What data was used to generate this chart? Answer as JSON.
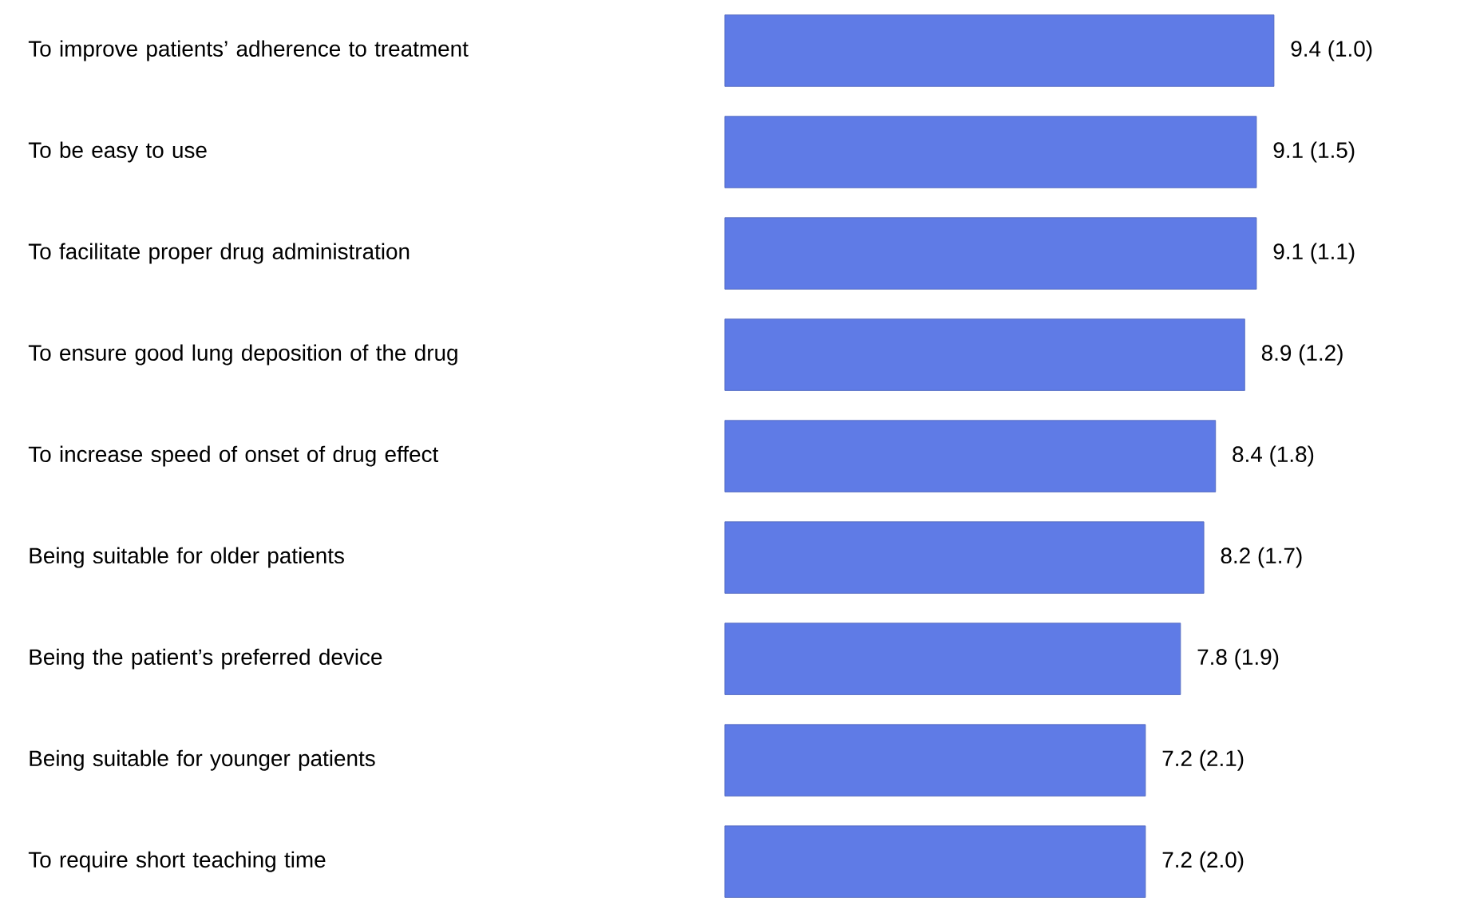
{
  "chart_data": {
    "type": "bar",
    "orientation": "horizontal",
    "categories": [
      "To improve patients’ adherence to treatment",
      "To be easy to use",
      "To facilitate proper drug administration",
      "To ensure good lung deposition of the drug",
      "To increase speed of onset of drug effect",
      "Being suitable for older patients",
      "Being the patient’s preferred device",
      "Being suitable for younger patients",
      "To require short teaching time"
    ],
    "values": [
      9.4,
      9.1,
      9.1,
      8.9,
      8.4,
      8.2,
      7.8,
      7.2,
      7.2
    ],
    "value_labels": [
      "9.4 (1.0)",
      "9.1 (1.5)",
      "9.1 (1.1)",
      "8.9 (1.2)",
      "8.4 (1.8)",
      "8.2 (1.7)",
      "7.8 (1.9)",
      "7.2 (2.1)",
      "7.2 (2.0)"
    ],
    "color": "#5f7be6",
    "tick_labels": "y"
  }
}
